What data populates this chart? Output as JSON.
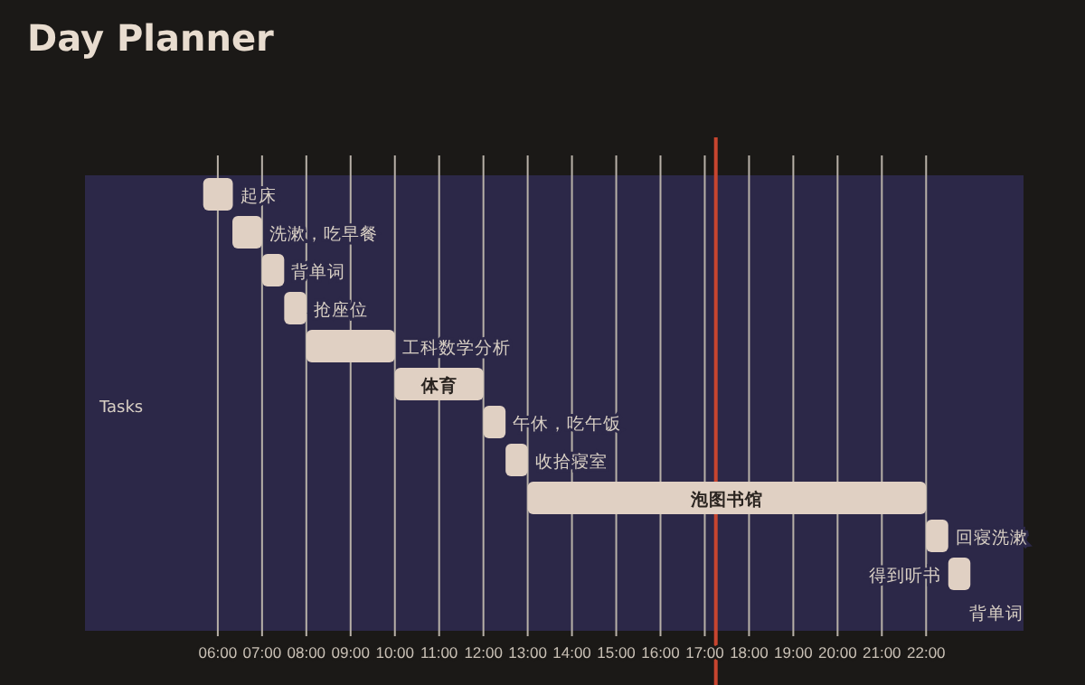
{
  "chart_data": {
    "type": "bar",
    "orientation": "horizontal",
    "title": "Day Planner",
    "ylabel": "Tasks",
    "categories": [
      "起床",
      "洗漱，吃早餐",
      "背单词",
      "抢座位",
      "工科数学分析",
      "体育",
      "午休，吃午饭",
      "收拾寝室",
      "泡图书馆",
      "回寝洗漱",
      "得到听书",
      "背单词"
    ],
    "base": [
      5.67,
      6.33,
      7,
      7.5,
      8,
      10,
      12,
      12.5,
      13,
      22,
      22.5,
      null
    ],
    "values": [
      0.67,
      0.67,
      0.5,
      0.5,
      2,
      2,
      0.5,
      0.5,
      9,
      0.5,
      0.5,
      null
    ],
    "color": "#e0d0c3",
    "xlim": [
      3,
      24.2
    ],
    "xticks": [
      {
        "value": 6,
        "label": "06:00"
      },
      {
        "value": 7,
        "label": "07:00"
      },
      {
        "value": 8,
        "label": "08:00"
      },
      {
        "value": 9,
        "label": "09:00"
      },
      {
        "value": 10,
        "label": "10:00"
      },
      {
        "value": 11,
        "label": "11:00"
      },
      {
        "value": 12,
        "label": "12:00"
      },
      {
        "value": 13,
        "label": "13:00"
      },
      {
        "value": 14,
        "label": "14:00"
      },
      {
        "value": 15,
        "label": "15:00"
      },
      {
        "value": 16,
        "label": "16:00"
      },
      {
        "value": 17,
        "label": "17:00"
      },
      {
        "value": 18,
        "label": "18:00"
      },
      {
        "value": 19,
        "label": "19:00"
      },
      {
        "value": 20,
        "label": "20:00"
      },
      {
        "value": 21,
        "label": "21:00"
      },
      {
        "value": 22,
        "label": "22:00"
      }
    ],
    "grid": "x",
    "ref_lines": [
      {
        "axis": "x",
        "value": 17.25,
        "color": "#c8452f"
      }
    ]
  }
}
